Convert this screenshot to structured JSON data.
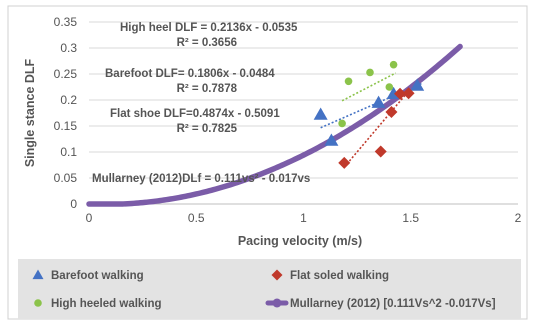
{
  "chart_data": {
    "type": "scatter",
    "xlabel": "Pacing velocity (m/s)",
    "ylabel": "Single stance DLF",
    "xlim": [
      0,
      2
    ],
    "ylim": [
      0,
      0.35
    ],
    "x_ticks": [
      "0",
      "0.5",
      "1",
      "1.5",
      "2"
    ],
    "y_ticks": [
      "0",
      "0.05",
      "0.1",
      "0.15",
      "0.2",
      "0.25",
      "0.3",
      "0.35"
    ],
    "grid": "horizontal",
    "legend_position": "bottom",
    "series": [
      {
        "name": "Barefoot walking",
        "marker": "triangle",
        "color": "#4472C4",
        "x": [
          1.08,
          1.13,
          1.35,
          1.42,
          1.53
        ],
        "y": [
          0.172,
          0.122,
          0.195,
          0.212,
          0.228
        ]
      },
      {
        "name": "Flat soled walking",
        "marker": "diamond",
        "color": "#C0392B",
        "x": [
          1.19,
          1.36,
          1.41,
          1.45,
          1.49
        ],
        "y": [
          0.079,
          0.101,
          0.177,
          0.212,
          0.213
        ]
      },
      {
        "name": "High heeled walking",
        "marker": "circle",
        "color": "#8BC34A",
        "x": [
          1.18,
          1.21,
          1.31,
          1.4,
          1.42
        ],
        "y": [
          0.155,
          0.236,
          0.253,
          0.225,
          0.268
        ]
      },
      {
        "name": "Mullarney (2012) [0.111Vs^2 -0.017Vs]",
        "marker": "circle-line",
        "color": "#7B5CA8",
        "function": {
          "a": 0.111,
          "b": -0.017
        },
        "x_range": [
          0,
          1.73
        ]
      }
    ],
    "trendlines": [
      {
        "series": "Barefoot walking",
        "slope": 0.1806,
        "intercept": -0.0484,
        "x_range": [
          1.08,
          1.55
        ],
        "color": "#4472C4"
      },
      {
        "series": "Flat soled walking",
        "slope": 0.4874,
        "intercept": -0.5091,
        "x_range": [
          1.19,
          1.49
        ],
        "color": "#C0392B"
      },
      {
        "series": "High heeled walking",
        "slope": 0.2136,
        "intercept": -0.0535,
        "x_range": [
          1.18,
          1.43
        ],
        "color": "#8BC34A"
      }
    ],
    "annotations": [
      "High heel DLF = 0.2136x - 0.0535",
      "R² = 0.3656",
      "Barefoot DLF= 0.1806x - 0.0484",
      "R² = 0.7878",
      "Flat shoe DLF=0.4874x - 0.5091",
      "R² = 0.7825",
      "Mullarney (2012)DLf = 0.111vs² - 0.017vs"
    ]
  }
}
